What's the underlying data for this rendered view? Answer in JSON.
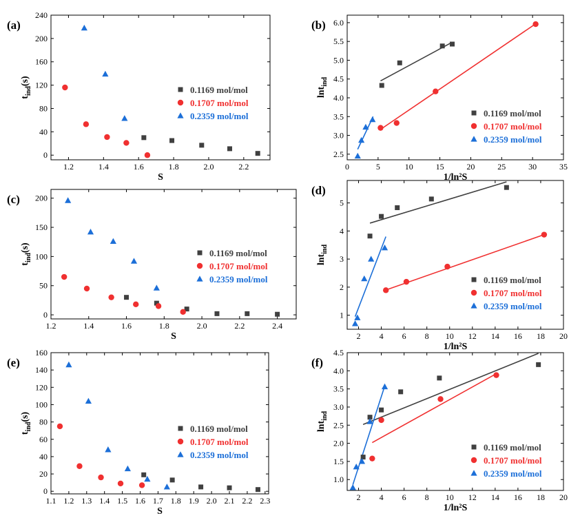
{
  "figure": {
    "legend_names": [
      "0.1169 mol/mol",
      "0.1707 mol/mol",
      "0.2359 mol/mol"
    ],
    "colors": {
      "s1": "#404040",
      "s2": "#f03030",
      "s3": "#1c6fd8"
    },
    "markers": [
      "square",
      "circle",
      "triangle"
    ]
  },
  "chart_data": [
    {
      "panel": "(a)",
      "type": "scatter",
      "xlabel": "S",
      "ylabel_base": "t",
      "ylabel_sub": "ind",
      "ylabel_tail": "(s)",
      "xlim": [
        1.1,
        2.35
      ],
      "ylim": [
        -8,
        240
      ],
      "xticks": [
        1.2,
        1.4,
        1.6,
        1.8,
        2.0,
        2.2
      ],
      "xtick_labels": [
        "1.2",
        "1.4",
        "1.6",
        "1.8",
        "2.0",
        "2.2"
      ],
      "yticks": [
        0,
        40,
        80,
        120,
        160,
        200,
        240
      ],
      "ytick_labels": [
        "0",
        "40",
        "80",
        "120",
        "160",
        "200",
        "240"
      ],
      "legend_position": "middle-right",
      "series": [
        {
          "name": "0.1169 mol/mol",
          "x": [
            1.63,
            1.79,
            1.96,
            2.12,
            2.28
          ],
          "y": [
            30,
            25,
            17,
            11,
            3
          ]
        },
        {
          "name": "0.1707 mol/mol",
          "x": [
            1.18,
            1.3,
            1.42,
            1.53,
            1.65
          ],
          "y": [
            116,
            53,
            31,
            21,
            0
          ]
        },
        {
          "name": "0.2359 mol/mol",
          "x": [
            1.29,
            1.41,
            1.52
          ],
          "y": [
            218,
            139,
            63
          ]
        }
      ]
    },
    {
      "panel": "(b)",
      "type": "scatter",
      "xlabel": "1/ln²S",
      "ylabel_base": "lnt",
      "ylabel_sub": "ind",
      "ylabel_tail": "",
      "xlim": [
        0,
        35
      ],
      "ylim": [
        2.35,
        6.2
      ],
      "xticks": [
        0,
        5,
        10,
        15,
        20,
        25,
        30,
        35
      ],
      "xtick_labels": [
        "0",
        "5",
        "10",
        "15",
        "20",
        "25",
        "30",
        "35"
      ],
      "yticks": [
        2.5,
        3.0,
        3.5,
        4.0,
        4.5,
        5.0,
        5.5,
        6.0
      ],
      "ytick_labels": [
        "2.5",
        "3.0",
        "3.5",
        "4.0",
        "4.5",
        "5.0",
        "5.5",
        "6.0"
      ],
      "legend_position": "bottom-right",
      "series": [
        {
          "name": "0.1169 mol/mol",
          "x": [
            5.6,
            8.5,
            15.4,
            17.0
          ],
          "y": [
            4.33,
            4.93,
            5.38,
            5.43
          ],
          "fit": [
            [
              5.4,
              4.45
            ],
            [
              17.0,
              5.48
            ]
          ]
        },
        {
          "name": "0.1707 mol/mol",
          "x": [
            5.4,
            8.0,
            14.3,
            30.5
          ],
          "y": [
            3.2,
            3.33,
            4.17,
            5.96
          ],
          "fit": [
            [
              5.5,
              3.17
            ],
            [
              30.5,
              5.97
            ]
          ]
        },
        {
          "name": "0.2359 mol/mol",
          "x": [
            1.7,
            2.3,
            3.0,
            4.1
          ],
          "y": [
            2.45,
            2.87,
            3.22,
            3.42
          ],
          "fit": [
            [
              1.7,
              2.63
            ],
            [
              4.2,
              3.5
            ]
          ]
        }
      ]
    },
    {
      "panel": "(c)",
      "type": "scatter",
      "xlabel": "S",
      "ylabel_base": "t",
      "ylabel_sub": "ind",
      "ylabel_tail": "(s)",
      "xlim": [
        1.2,
        2.5
      ],
      "ylim": [
        -7,
        215
      ],
      "xticks": [
        1.2,
        1.4,
        1.6,
        1.8,
        2.0,
        2.2,
        2.4
      ],
      "xtick_labels": [
        "1.2",
        "1.4",
        "1.6",
        "1.8",
        "2.0",
        "2.2",
        "2.4"
      ],
      "yticks": [
        0,
        50,
        100,
        150,
        200
      ],
      "ytick_labels": [
        "0",
        "50",
        "100",
        "150",
        "200"
      ],
      "legend_position": "middle-right",
      "series": [
        {
          "name": "0.1169 mol/mol",
          "x": [
            1.6,
            1.76,
            1.92,
            2.08,
            2.24,
            2.4
          ],
          "y": [
            30,
            20,
            10,
            2,
            2,
            1
          ]
        },
        {
          "name": "0.1707 mol/mol",
          "x": [
            1.27,
            1.39,
            1.52,
            1.65,
            1.77,
            1.9
          ],
          "y": [
            65,
            45,
            30,
            18,
            15,
            5
          ]
        },
        {
          "name": "0.2359 mol/mol",
          "x": [
            1.29,
            1.41,
            1.53,
            1.64,
            1.76
          ],
          "y": [
            196,
            142,
            126,
            92,
            46
          ]
        }
      ]
    },
    {
      "panel": "(d)",
      "type": "scatter",
      "xlabel": "1/ln²S",
      "ylabel_base": "lnt",
      "ylabel_sub": "ind",
      "ylabel_tail": "",
      "xlim": [
        1,
        20
      ],
      "ylim": [
        0.5,
        5.8
      ],
      "xticks": [
        2,
        4,
        6,
        8,
        10,
        12,
        14,
        16,
        18,
        20
      ],
      "xtick_labels": [
        "2",
        "4",
        "6",
        "8",
        "10",
        "12",
        "14",
        "16",
        "18",
        "20"
      ],
      "yticks": [
        1,
        2,
        3,
        4,
        5
      ],
      "ytick_labels": [
        "1",
        "2",
        "3",
        "4",
        "5"
      ],
      "legend_position": "bottom-right",
      "series": [
        {
          "name": "0.1169 mol/mol",
          "x": [
            3.0,
            4.0,
            5.4,
            8.4,
            15.0
          ],
          "y": [
            3.82,
            4.52,
            4.83,
            5.14,
            5.55
          ],
          "fit": [
            [
              3.0,
              4.28
            ],
            [
              15.0,
              5.75
            ]
          ]
        },
        {
          "name": "0.1707 mol/mol",
          "x": [
            4.4,
            6.2,
            9.8,
            18.3
          ],
          "y": [
            1.89,
            2.19,
            2.73,
            3.87
          ],
          "fit": [
            [
              4.4,
              1.9
            ],
            [
              18.3,
              3.87
            ]
          ]
        },
        {
          "name": "0.2359 mol/mol",
          "x": [
            1.7,
            1.9,
            2.5,
            3.1,
            4.3
          ],
          "y": [
            0.7,
            0.91,
            2.3,
            3.0,
            3.4
          ],
          "fit": [
            [
              1.7,
              0.95
            ],
            [
              4.4,
              3.8
            ]
          ]
        }
      ]
    },
    {
      "panel": "(e)",
      "type": "scatter",
      "xlabel": "S",
      "ylabel_base": "t",
      "ylabel_sub": "ind",
      "ylabel_tail": "(s)",
      "xlim": [
        1.1,
        2.32
      ],
      "ylim": [
        -3,
        160
      ],
      "xticks": [
        1.1,
        1.2,
        1.3,
        1.4,
        1.5,
        1.6,
        1.7,
        1.8,
        1.9,
        2.0,
        2.1,
        2.2,
        2.3
      ],
      "xtick_labels": [
        "1.1",
        "1.2",
        "1.3",
        "1.4",
        "1.5",
        "1.6",
        "1.7",
        "1.8",
        "1.9",
        "2.0",
        "2.1",
        "2.2",
        "2.3"
      ],
      "yticks": [
        0,
        20,
        40,
        60,
        80,
        100,
        120,
        140,
        160
      ],
      "ytick_labels": [
        "0",
        "20",
        "40",
        "60",
        "80",
        "100",
        "120",
        "140",
        "160"
      ],
      "legend_position": "middle-right",
      "series": [
        {
          "name": "0.1169 mol/mol",
          "x": [
            1.62,
            1.78,
            1.94,
            2.1,
            2.26
          ],
          "y": [
            19,
            13,
            5,
            4,
            2
          ]
        },
        {
          "name": "0.1707 mol/mol",
          "x": [
            1.15,
            1.26,
            1.38,
            1.49,
            1.61
          ],
          "y": [
            75,
            29,
            16,
            9,
            7
          ]
        },
        {
          "name": "0.2359 mol/mol",
          "x": [
            1.2,
            1.31,
            1.42,
            1.53,
            1.64,
            1.75
          ],
          "y": [
            146,
            104,
            48,
            26,
            14,
            5
          ]
        }
      ]
    },
    {
      "panel": "(f)",
      "type": "scatter",
      "xlabel": "1/ln²S",
      "ylabel_base": "lnt",
      "ylabel_sub": "ind",
      "ylabel_tail": "",
      "xlim": [
        1,
        20
      ],
      "ylim": [
        0.7,
        4.5
      ],
      "xticks": [
        2,
        4,
        6,
        8,
        10,
        12,
        14,
        16,
        18,
        20
      ],
      "xtick_labels": [
        "2",
        "4",
        "6",
        "8",
        "10",
        "12",
        "14",
        "16",
        "18",
        "20"
      ],
      "yticks": [
        1.0,
        1.5,
        2.0,
        2.5,
        3.0,
        3.5,
        4.0,
        4.5
      ],
      "ytick_labels": [
        "1.0",
        "1.5",
        "2.0",
        "2.5",
        "3.0",
        "3.5",
        "4.0",
        "4.5"
      ],
      "legend_position": "bottom-right",
      "series": [
        {
          "name": "0.1169 mol/mol",
          "x": [
            2.4,
            3.0,
            4.0,
            5.7,
            9.1,
            17.8
          ],
          "y": [
            1.62,
            2.72,
            2.92,
            3.42,
            3.8,
            4.17
          ],
          "fit": [
            [
              2.4,
              2.52
            ],
            [
              17.8,
              4.48
            ]
          ]
        },
        {
          "name": "0.1707 mol/mol",
          "x": [
            3.2,
            4.0,
            9.2,
            14.1
          ],
          "y": [
            1.58,
            2.64,
            3.22,
            3.88
          ],
          "fit": [
            [
              3.2,
              2.02
            ],
            [
              14.1,
              3.92
            ]
          ]
        },
        {
          "name": "0.2359 mol/mol",
          "x": [
            1.5,
            1.8,
            2.3,
            3.0,
            4.3
          ],
          "y": [
            0.78,
            1.35,
            1.5,
            2.6,
            3.56
          ],
          "fit": [
            [
              1.5,
              0.86
            ],
            [
              4.3,
              3.58
            ]
          ]
        }
      ]
    }
  ]
}
